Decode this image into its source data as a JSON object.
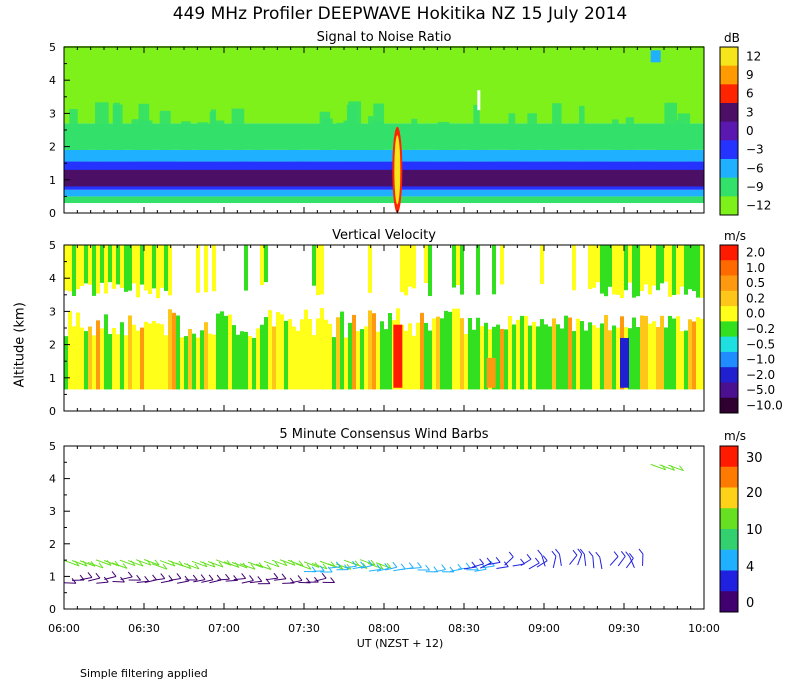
{
  "title": "449 MHz Profiler DEEPWAVE Hokitika NZ 15 July 2014",
  "footnote": "Simple filtering applied",
  "chart_data": [
    {
      "type": "heatmap",
      "title": "Signal to Noise Ratio",
      "ylabel": "Altitude (km)",
      "ylim": [
        0,
        5
      ],
      "yticks": [
        "0",
        "1",
        "2",
        "3",
        "4",
        "5"
      ],
      "xlim": [
        "06:00",
        "10:00"
      ],
      "colorbar_unit": "dB",
      "colorbar_labels": [
        "12",
        "9",
        "6",
        "3",
        "0",
        "−3",
        "−6",
        "−9",
        "−12"
      ],
      "colors": [
        "#f5e51a",
        "#ff9a00",
        "#ff2400",
        "#4c0f66",
        "#5a18b0",
        "#2433ff",
        "#1fb0ff",
        "#33e06a",
        "#7ef01a"
      ],
      "layers": [
        {
          "bottom": 0.3,
          "top": 0.5,
          "level": "−9"
        },
        {
          "bottom": 0.5,
          "top": 0.7,
          "level": "−6"
        },
        {
          "bottom": 0.7,
          "top": 1.55,
          "level": "−3"
        },
        {
          "bottom": 0.8,
          "top": 1.3,
          "level": "3"
        },
        {
          "bottom": 1.55,
          "top": 1.9,
          "level": "−6"
        },
        {
          "bottom": 1.9,
          "top": 2.7,
          "level": "−9"
        },
        {
          "bottom": 2.7,
          "top": 5.0,
          "level": "−12"
        }
      ]
    },
    {
      "type": "heatmap",
      "title": "Vertical Velocity",
      "ylabel": "Altitude (km)",
      "ylim": [
        0,
        5
      ],
      "yticks": [
        "0",
        "1",
        "2",
        "3",
        "4",
        "5"
      ],
      "xlim": [
        "06:00",
        "10:00"
      ],
      "colorbar_unit": "m/s",
      "colorbar_labels": [
        "2.0",
        "1.0",
        "0.5",
        "0.2",
        "0.0",
        "−0.2",
        "−0.5",
        "−1.0",
        "−2.0",
        "−5.0",
        "−10.0"
      ],
      "colors": [
        "#ff1a00",
        "#ff6a00",
        "#ff9a10",
        "#ffc61a",
        "#ffff1a",
        "#33e020",
        "#1fe0e0",
        "#1f8cff",
        "#2020d0",
        "#4a1090",
        "#300030"
      ],
      "updrafts": [
        {
          "time": "08:05",
          "bottom": 0.7,
          "top": 2.6,
          "value": 2.0
        },
        {
          "time": "08:40",
          "bottom": 0.7,
          "top": 1.6,
          "value": 0.5
        },
        {
          "time": "09:30",
          "bottom": 0.7,
          "top": 2.2,
          "value": -2.0
        }
      ]
    },
    {
      "type": "scatter",
      "title": "5 Minute Consensus Wind Barbs",
      "ylabel": "Altitude (km)",
      "ylim": [
        0,
        5
      ],
      "yticks": [
        "0",
        "1",
        "2",
        "3",
        "4",
        "5"
      ],
      "xlabel": "UT  (NZST + 12)",
      "xticks": [
        "06:00",
        "06:30",
        "07:00",
        "07:30",
        "08:00",
        "08:30",
        "09:00",
        "09:30",
        "10:00"
      ],
      "colorbar_unit": "m/s",
      "colorbar_labels": [
        "30",
        "20",
        "10",
        "4",
        "0"
      ],
      "colors": [
        "#ff1a00",
        "#ff7a00",
        "#ffd21a",
        "#66e020",
        "#33d070",
        "#1fb0ff",
        "#2020e0",
        "#400070"
      ],
      "barb_rows": [
        {
          "altitude": 1.45,
          "from": "06:00",
          "to": "08:00",
          "speed": 12
        },
        {
          "altitude": 0.85,
          "from": "06:00",
          "to": "07:40",
          "speed": 1
        },
        {
          "altitude": 1.2,
          "from": "07:30",
          "to": "08:40",
          "speed": 4
        },
        {
          "altitude": 1.3,
          "from": "08:30",
          "to": "09:40",
          "speed": 2
        },
        {
          "altitude": 4.4,
          "from": "09:40",
          "to": "09:50",
          "speed": 10
        }
      ]
    }
  ]
}
